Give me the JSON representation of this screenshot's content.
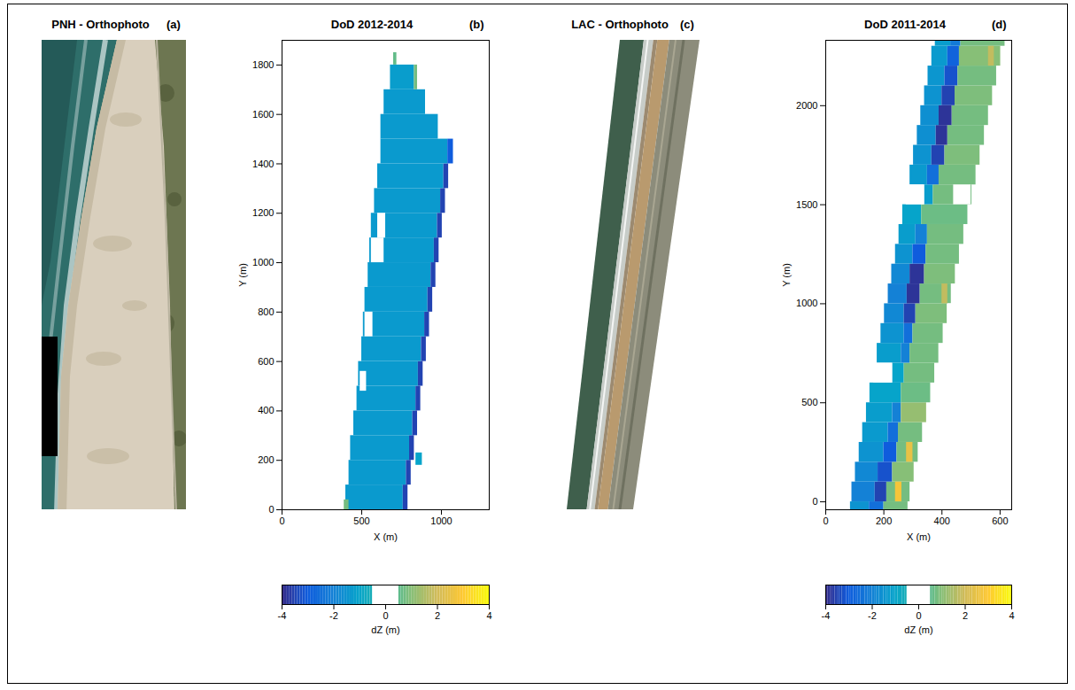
{
  "chart_data": [
    {
      "type": "image",
      "title": "PNH - Orthophoto",
      "panel": "(a)"
    },
    {
      "type": "heatmap",
      "title": "DoD 2012-2014",
      "panel": "(b)",
      "xlabel": "X (m)",
      "ylabel": "Y (m)",
      "xlim": [
        0,
        1300
      ],
      "ylim": [
        0,
        1900
      ],
      "xticks": [
        0,
        500,
        1000
      ],
      "yticks": [
        0,
        200,
        400,
        600,
        800,
        1000,
        1200,
        1400,
        1600,
        1800
      ],
      "cells": [
        [
          400,
          760,
          0,
          100,
          -1.3
        ],
        [
          760,
          790,
          0,
          100,
          -3.5
        ],
        [
          420,
          780,
          100,
          200,
          -1.3
        ],
        [
          780,
          810,
          100,
          200,
          -3.5
        ],
        [
          430,
          800,
          200,
          300,
          -1.3
        ],
        [
          800,
          830,
          200,
          300,
          -3.5
        ],
        [
          450,
          820,
          300,
          400,
          -1.3
        ],
        [
          820,
          850,
          300,
          400,
          -3.5
        ],
        [
          470,
          840,
          400,
          500,
          -1.3
        ],
        [
          840,
          870,
          400,
          500,
          -3.5
        ],
        [
          480,
          855,
          500,
          600,
          -1.3
        ],
        [
          855,
          885,
          500,
          600,
          -3.5
        ],
        [
          500,
          875,
          600,
          700,
          -1.3
        ],
        [
          875,
          905,
          600,
          700,
          -3.5
        ],
        [
          510,
          895,
          700,
          800,
          -1.3
        ],
        [
          895,
          925,
          700,
          800,
          -3.5
        ],
        [
          520,
          915,
          800,
          900,
          -1.3
        ],
        [
          915,
          945,
          800,
          900,
          -3.5
        ],
        [
          540,
          935,
          900,
          1000,
          -1.3
        ],
        [
          935,
          965,
          900,
          1000,
          -3.5
        ],
        [
          550,
          955,
          1000,
          1100,
          -1.3
        ],
        [
          955,
          985,
          1000,
          1100,
          -3.5
        ],
        [
          560,
          975,
          1100,
          1200,
          -1.3
        ],
        [
          975,
          1005,
          1100,
          1200,
          -3.5
        ],
        [
          580,
          995,
          1200,
          1300,
          -1.3
        ],
        [
          995,
          1025,
          1200,
          1300,
          -3.5
        ],
        [
          600,
          1015,
          1300,
          1400,
          -1.3
        ],
        [
          1015,
          1045,
          1300,
          1400,
          -3.5
        ],
        [
          620,
          1040,
          1400,
          1500,
          -1.3
        ],
        [
          1040,
          1075,
          1400,
          1500,
          -3.0
        ],
        [
          620,
          980,
          1500,
          1600,
          -1.3
        ],
        [
          640,
          900,
          1600,
          1700,
          -1.3
        ],
        [
          680,
          830,
          1700,
          1800,
          -1.2
        ],
        [
          830,
          850,
          1700,
          1800,
          0.8
        ],
        [
          700,
          720,
          1800,
          1850,
          0.6
        ],
        [
          390,
          420,
          0,
          40,
          0.8
        ],
        [
          840,
          880,
          180,
          230,
          -1.0
        ],
        [
          560,
          640,
          1000,
          1100,
          0
        ],
        [
          520,
          570,
          700,
          800,
          0
        ],
        [
          600,
          650,
          1100,
          1200,
          0
        ],
        [
          490,
          530,
          480,
          560,
          0
        ]
      ],
      "colorbar": {
        "label": "dZ (m)",
        "range": [
          -4,
          4
        ],
        "ticks": [
          -4,
          -2,
          0,
          2,
          4
        ],
        "blank": [
          -0.5,
          0.5
        ]
      }
    },
    {
      "type": "image",
      "title": "LAC - Orthophoto",
      "panel": "(c)"
    },
    {
      "type": "heatmap",
      "title": "DoD 2011-2014",
      "panel": "(d)",
      "xlabel": "X (m)",
      "ylabel": "Y (m)",
      "xlim": [
        0,
        640
      ],
      "ylim": [
        -40,
        2330
      ],
      "xticks": [
        0,
        200,
        400,
        600
      ],
      "yticks": [
        0,
        500,
        1000,
        1500,
        2000
      ],
      "cells": [
        [
          85,
          150,
          -40,
          0,
          -1.5
        ],
        [
          150,
          200,
          -40,
          0,
          -2.5
        ],
        [
          200,
          283,
          -40,
          0,
          0.8
        ],
        [
          90,
          170,
          0,
          100,
          -2.0
        ],
        [
          170,
          210,
          0,
          100,
          -3.5
        ],
        [
          210,
          290,
          0,
          100,
          0.8
        ],
        [
          102,
          180,
          100,
          200,
          -1.8
        ],
        [
          180,
          230,
          100,
          200,
          -3.2
        ],
        [
          230,
          304,
          100,
          200,
          1.0
        ],
        [
          115,
          200,
          200,
          300,
          -1.5
        ],
        [
          200,
          245,
          200,
          300,
          -3.0
        ],
        [
          245,
          318,
          200,
          300,
          0.8
        ],
        [
          127,
          215,
          300,
          400,
          -1.3
        ],
        [
          215,
          250,
          300,
          400,
          -2.5
        ],
        [
          250,
          333,
          300,
          400,
          0.8
        ],
        [
          140,
          230,
          400,
          500,
          -1.2
        ],
        [
          230,
          260,
          400,
          500,
          -2.0
        ],
        [
          260,
          347,
          400,
          500,
          1.2
        ],
        [
          152,
          260,
          500,
          600,
          -1.0
        ],
        [
          260,
          361,
          500,
          600,
          0.7
        ],
        [
          165,
          230,
          600,
          700,
          0
        ],
        [
          230,
          270,
          600,
          700,
          -1.0
        ],
        [
          270,
          375,
          600,
          700,
          0.8
        ],
        [
          177,
          260,
          700,
          800,
          -1.2
        ],
        [
          260,
          290,
          700,
          800,
          -2.0
        ],
        [
          290,
          389,
          700,
          800,
          0.8
        ],
        [
          190,
          270,
          800,
          900,
          -1.5
        ],
        [
          270,
          300,
          800,
          900,
          -2.5
        ],
        [
          300,
          404,
          800,
          900,
          0.8
        ],
        [
          202,
          270,
          900,
          1000,
          -1.8
        ],
        [
          270,
          310,
          900,
          1000,
          -3.5
        ],
        [
          310,
          418,
          900,
          1000,
          0.9
        ],
        [
          215,
          280,
          1000,
          1100,
          -2.0
        ],
        [
          280,
          325,
          1000,
          1100,
          -3.8
        ],
        [
          325,
          432,
          1000,
          1100,
          0.8
        ],
        [
          227,
          290,
          1100,
          1200,
          -1.8
        ],
        [
          290,
          340,
          1100,
          1200,
          -3.8
        ],
        [
          340,
          446,
          1100,
          1200,
          0.9
        ],
        [
          240,
          300,
          1200,
          1300,
          -1.5
        ],
        [
          300,
          345,
          1200,
          1300,
          -3.0
        ],
        [
          345,
          460,
          1200,
          1300,
          0.8
        ],
        [
          252,
          310,
          1300,
          1400,
          -1.2
        ],
        [
          310,
          350,
          1300,
          1400,
          -2.0
        ],
        [
          350,
          475,
          1300,
          1400,
          0.8
        ],
        [
          265,
          330,
          1400,
          1500,
          -1.0
        ],
        [
          330,
          489,
          1400,
          1500,
          0.7
        ],
        [
          277,
          340,
          1500,
          1600,
          0
        ],
        [
          340,
          370,
          1500,
          1600,
          -1.2
        ],
        [
          370,
          503,
          1500,
          1600,
          0.8
        ],
        [
          290,
          350,
          1600,
          1700,
          -1.3
        ],
        [
          350,
          390,
          1600,
          1700,
          -2.5
        ],
        [
          390,
          517,
          1600,
          1700,
          0.8
        ],
        [
          302,
          365,
          1700,
          1800,
          -1.5
        ],
        [
          365,
          410,
          1700,
          1800,
          -3.5
        ],
        [
          410,
          531,
          1700,
          1800,
          0.9
        ],
        [
          315,
          380,
          1800,
          1900,
          -1.6
        ],
        [
          380,
          420,
          1800,
          1900,
          -3.8
        ],
        [
          420,
          546,
          1800,
          1900,
          0.8
        ],
        [
          327,
          390,
          1900,
          2000,
          -1.6
        ],
        [
          390,
          435,
          1900,
          2000,
          -3.8
        ],
        [
          435,
          560,
          1900,
          2000,
          0.8
        ],
        [
          340,
          400,
          2000,
          2100,
          -1.5
        ],
        [
          400,
          445,
          2000,
          2100,
          -3.5
        ],
        [
          445,
          574,
          2000,
          2100,
          0.9
        ],
        [
          352,
          410,
          2100,
          2200,
          -1.4
        ],
        [
          410,
          455,
          2100,
          2200,
          -3.2
        ],
        [
          455,
          588,
          2100,
          2200,
          0.8
        ],
        [
          365,
          420,
          2200,
          2300,
          -1.3
        ],
        [
          420,
          460,
          2200,
          2300,
          -2.8
        ],
        [
          460,
          602,
          2200,
          2300,
          1.0
        ],
        [
          377,
          430,
          2300,
          2330,
          -1.2
        ],
        [
          430,
          465,
          2300,
          2330,
          -2.2
        ],
        [
          465,
          617,
          2300,
          2330,
          0.8
        ],
        [
          240,
          262,
          0,
          100,
          2.8
        ],
        [
          278,
          300,
          200,
          300,
          2.5
        ],
        [
          400,
          420,
          1000,
          1100,
          1.8
        ],
        [
          560,
          580,
          2200,
          2300,
          1.8
        ],
        [
          440,
          500,
          1500,
          1600,
          0
        ],
        [
          420,
          470,
          900,
          1000,
          0
        ]
      ],
      "colorbar": {
        "label": "dZ (m)",
        "range": [
          -4,
          4
        ],
        "ticks": [
          -4,
          -2,
          0,
          2,
          4
        ],
        "blank": [
          -0.5,
          0.5
        ]
      }
    }
  ]
}
